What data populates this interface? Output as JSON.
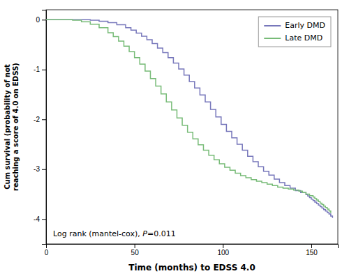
{
  "chart_data": {
    "type": "step",
    "xlabel": "Time (months) to EDSS 4.0",
    "ylabel": "Cum survival (probability of not\nreaching a score of 4.0 on EDSS)",
    "xlim": [
      0,
      165
    ],
    "ylim": [
      -4.5,
      0.2
    ],
    "xticks": [
      0,
      50,
      100,
      150
    ],
    "yticks": [
      0,
      -1,
      -2,
      -3,
      -4
    ],
    "grid": false,
    "legend": "upper right",
    "annotations": [
      "Log rank (mantel-cox), ",
      "P",
      "=0.011"
    ],
    "series": [
      {
        "name": "Early DMD",
        "color": "#7777bb",
        "x": [
          0,
          25,
          30,
          35,
          40,
          45,
          48,
          51,
          54,
          57,
          60,
          63,
          66,
          69,
          72,
          75,
          78,
          81,
          84,
          87,
          90,
          93,
          96,
          99,
          102,
          105,
          108,
          111,
          114,
          117,
          120,
          123,
          126,
          129,
          132,
          135,
          138,
          141,
          144,
          147,
          148,
          149,
          150,
          151,
          152,
          153,
          154,
          155,
          156,
          157,
          158,
          159,
          160,
          161,
          162
        ],
        "values": [
          0,
          -0.01,
          -0.03,
          -0.06,
          -0.1,
          -0.16,
          -0.21,
          -0.27,
          -0.33,
          -0.4,
          -0.48,
          -0.57,
          -0.66,
          -0.76,
          -0.87,
          -0.99,
          -1.11,
          -1.24,
          -1.37,
          -1.51,
          -1.65,
          -1.8,
          -1.95,
          -2.1,
          -2.24,
          -2.37,
          -2.5,
          -2.62,
          -2.74,
          -2.85,
          -2.95,
          -3.04,
          -3.12,
          -3.2,
          -3.27,
          -3.33,
          -3.38,
          -3.43,
          -3.47,
          -3.51,
          -3.54,
          -3.57,
          -3.6,
          -3.63,
          -3.66,
          -3.69,
          -3.72,
          -3.75,
          -3.78,
          -3.81,
          -3.84,
          -3.87,
          -3.9,
          -3.94,
          -3.98
        ]
      },
      {
        "name": "Late DMD",
        "color": "#77bb77",
        "x": [
          0,
          15,
          20,
          25,
          30,
          35,
          38,
          41,
          44,
          47,
          50,
          53,
          56,
          59,
          62,
          65,
          68,
          71,
          74,
          77,
          80,
          83,
          86,
          89,
          92,
          95,
          98,
          101,
          104,
          107,
          110,
          113,
          116,
          119,
          122,
          125,
          128,
          131,
          134,
          137,
          140,
          143,
          145,
          147,
          149,
          151,
          152,
          153,
          154,
          155,
          156,
          157,
          158,
          159,
          160,
          161
        ],
        "values": [
          0,
          -0.01,
          -0.04,
          -0.09,
          -0.16,
          -0.26,
          -0.34,
          -0.43,
          -0.53,
          -0.64,
          -0.76,
          -0.89,
          -1.03,
          -1.18,
          -1.33,
          -1.49,
          -1.65,
          -1.81,
          -1.97,
          -2.12,
          -2.26,
          -2.39,
          -2.51,
          -2.62,
          -2.72,
          -2.81,
          -2.89,
          -2.96,
          -3.02,
          -3.08,
          -3.13,
          -3.17,
          -3.21,
          -3.24,
          -3.27,
          -3.3,
          -3.33,
          -3.36,
          -3.38,
          -3.4,
          -3.42,
          -3.44,
          -3.47,
          -3.5,
          -3.53,
          -3.56,
          -3.59,
          -3.62,
          -3.65,
          -3.68,
          -3.71,
          -3.74,
          -3.77,
          -3.8,
          -3.84,
          -3.88
        ]
      }
    ]
  }
}
